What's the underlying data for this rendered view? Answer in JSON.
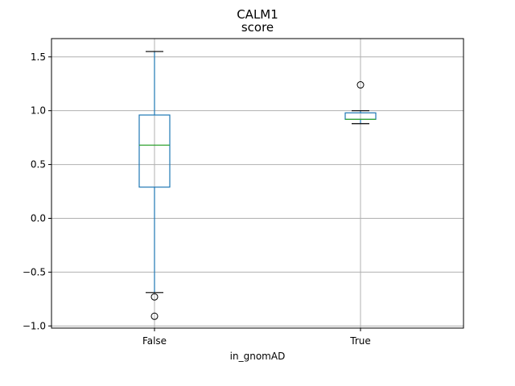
{
  "chart_data": {
    "type": "box",
    "title": "CALM1",
    "subtitle": "score",
    "xlabel": "in_gnomAD",
    "ylabel": "",
    "categories": [
      "False",
      "True"
    ],
    "ylim": [
      -1.02,
      1.67
    ],
    "yticks": [
      -1.0,
      -0.5,
      0.0,
      0.5,
      1.0,
      1.5
    ],
    "ytick_labels": [
      "−1.0",
      "−0.5",
      "0.0",
      "0.5",
      "1.0",
      "1.5"
    ],
    "grid": true,
    "boxes": [
      {
        "category": "False",
        "whisker_low": -0.69,
        "q1": 0.29,
        "median": 0.68,
        "q3": 0.96,
        "whisker_high": 1.55,
        "outliers": [
          -0.73,
          -0.91
        ]
      },
      {
        "category": "True",
        "whisker_low": 0.88,
        "q1": 0.92,
        "median": 0.92,
        "q3": 0.98,
        "whisker_high": 1.0,
        "outliers": [
          1.24
        ]
      }
    ],
    "colors": {
      "box": "#1f77b4",
      "median": "#2ca02c",
      "grid": "#b0b0b0",
      "outlier": "#000000"
    }
  }
}
